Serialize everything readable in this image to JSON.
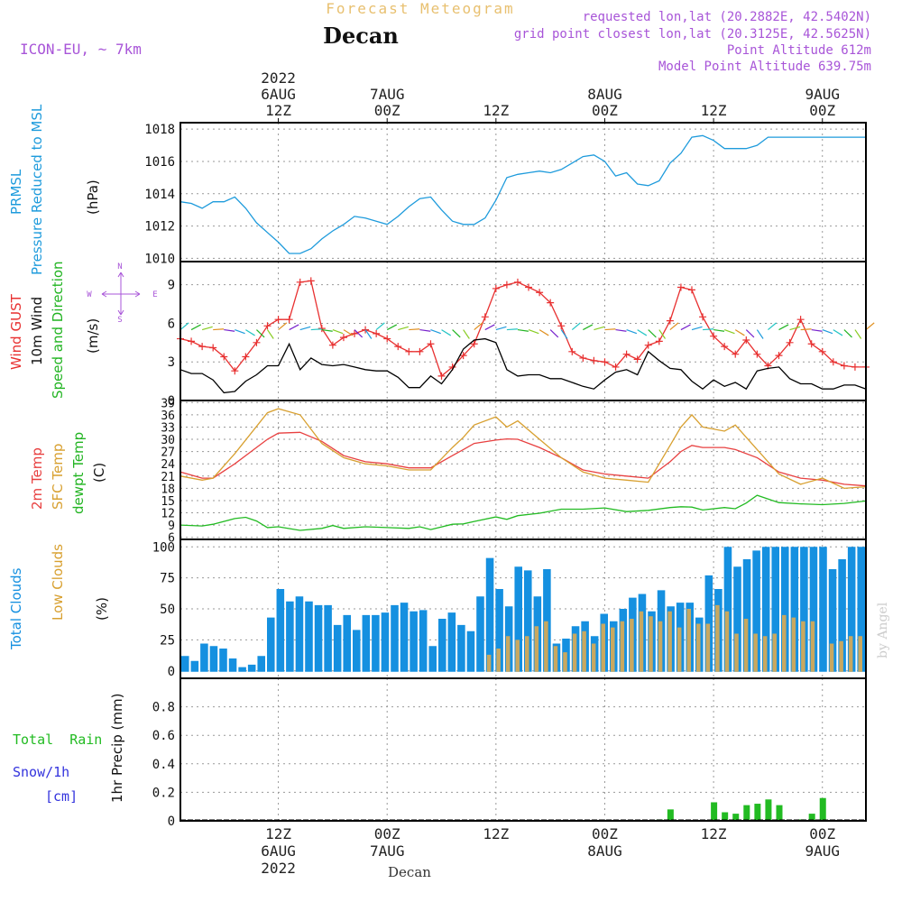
{
  "header": {
    "title": "Forecast Meteogram",
    "location": "Decan",
    "model": "ICON-EU, ~ 7km",
    "requested": "requested lon,lat (20.2882E, 42.5402N)",
    "gridpoint": "grid point closest lon,lat (20.3125E, 42.5625N)",
    "point_altitude": "Point Altitude 612m",
    "model_altitude": "Model Point Altitude 639.75m",
    "watermark": "by Angel",
    "bottom_label": "Decan"
  },
  "time_axis": {
    "start_hour": 0,
    "end_hour": 63,
    "ticks": [
      {
        "hour": 9,
        "lines": [
          "2022",
          "6AUG",
          "12Z"
        ]
      },
      {
        "hour": 19,
        "lines": [
          "7AUG",
          "00Z"
        ]
      },
      {
        "hour": 29,
        "lines": [
          "12Z"
        ]
      },
      {
        "hour": 39,
        "lines": [
          "8AUG",
          "00Z"
        ]
      },
      {
        "hour": 49,
        "lines": [
          "12Z"
        ]
      },
      {
        "hour": 59,
        "lines": [
          "9AUG",
          "00Z"
        ]
      }
    ],
    "bottom_ticks": [
      {
        "hour": 9,
        "lines": [
          "12Z",
          "6AUG",
          "2022"
        ]
      },
      {
        "hour": 19,
        "lines": [
          "00Z",
          "7AUG"
        ]
      },
      {
        "hour": 29,
        "lines": [
          "12Z"
        ]
      },
      {
        "hour": 39,
        "lines": [
          "00Z",
          "8AUG"
        ]
      },
      {
        "hour": 49,
        "lines": [
          "12Z"
        ]
      },
      {
        "hour": 59,
        "lines": [
          "00Z",
          "9AUG"
        ]
      }
    ]
  },
  "colors": {
    "pressure": "#1e9bdc",
    "gust": "#e83030",
    "wind": "#000000",
    "direction": "#22b422",
    "temp2m": "#e84040",
    "sfc": "#d8a030",
    "dew": "#22bb22",
    "total_clouds": "#1590e0",
    "low_clouds": "#c8a860",
    "rain": "#22bb22",
    "snow": "#3333dd",
    "title": "#e8c070",
    "purple": "#a855d8",
    "grid": "#999999"
  },
  "chart_data": [
    {
      "type": "line",
      "title": "PRMSL Pressure Reduced to MSL",
      "ylabels": [
        "PRMSL",
        "Pressure Reduced to MSL"
      ],
      "unit": "(hPa)",
      "ylim": [
        1009.8,
        1018.4
      ],
      "yticks": [
        1010,
        1012,
        1014,
        1016,
        1018
      ],
      "series": [
        {
          "name": "PRMSL",
          "x": [
            0,
            1,
            2,
            3,
            4,
            5,
            6,
            7,
            8,
            9,
            10,
            11,
            12,
            13,
            14,
            15,
            16,
            17,
            18,
            19,
            20,
            21,
            22,
            23,
            24,
            25,
            26,
            27,
            28,
            29,
            30,
            31,
            32,
            33,
            34,
            35,
            36,
            37,
            38,
            39,
            40,
            41,
            42,
            43,
            44,
            45,
            46,
            47,
            48,
            49,
            50,
            51,
            52,
            53,
            54,
            55,
            56,
            57,
            58,
            59,
            60,
            61,
            62,
            63
          ],
          "values": [
            1013.5,
            1013.4,
            1013.1,
            1013.5,
            1013.5,
            1013.8,
            1013.1,
            1012.2,
            1011.6,
            1011.0,
            1010.3,
            1010.3,
            1010.6,
            1011.2,
            1011.7,
            1012.1,
            1012.6,
            1012.5,
            1012.3,
            1012.1,
            1012.6,
            1013.2,
            1013.7,
            1013.8,
            1013.0,
            1012.3,
            1012.1,
            1012.1,
            1012.5,
            1013.6,
            1015.0,
            1015.2,
            1015.3,
            1015.4,
            1015.3,
            1015.5,
            1015.9,
            1016.3,
            1016.4,
            1016.0,
            1015.1,
            1015.3,
            1014.6,
            1014.5,
            1014.8,
            1015.9,
            1016.5,
            1017.5,
            1017.6,
            1017.3,
            1016.8,
            1016.8,
            1016.8,
            1017.0,
            1017.5,
            1017.5,
            1017.5,
            1017.5,
            1017.5,
            1017.5,
            1017.5,
            1017.5,
            1017.5,
            1017.5
          ]
        }
      ]
    },
    {
      "type": "line",
      "title": "Wind GUST / 10m Wind Speed and Direction",
      "ylabels": [
        "Wind GUST",
        "10m Wind",
        "Speed and Direction"
      ],
      "unit": "(m/s)",
      "compass": [
        "N",
        "W",
        "E",
        "S"
      ],
      "ylim": [
        0,
        10.8
      ],
      "yticks": [
        0,
        3,
        6,
        9
      ],
      "series": [
        {
          "name": "Wind GUST",
          "x": [
            0,
            1,
            2,
            3,
            4,
            5,
            6,
            7,
            8,
            9,
            10,
            11,
            12,
            13,
            14,
            15,
            16,
            17,
            18,
            19,
            20,
            21,
            22,
            23,
            24,
            25,
            26,
            27,
            28,
            29,
            30,
            31,
            32,
            33,
            34,
            35,
            36,
            37,
            38,
            39,
            40,
            41,
            42,
            43,
            44,
            45,
            46,
            47,
            48,
            49,
            50,
            51,
            52,
            53,
            54,
            55,
            56,
            57,
            58,
            59,
            60,
            61,
            62,
            63
          ],
          "values": [
            4.8,
            4.6,
            4.2,
            4.1,
            3.4,
            2.3,
            3.4,
            4.5,
            5.8,
            6.3,
            6.3,
            9.2,
            9.3,
            5.6,
            4.3,
            4.9,
            5.2,
            5.5,
            5.2,
            4.8,
            4.2,
            3.8,
            3.8,
            4.4,
            1.9,
            2.6,
            3.5,
            4.4,
            6.5,
            8.7,
            9.0,
            9.2,
            8.8,
            8.4,
            7.6,
            5.8,
            3.8,
            3.3,
            3.1,
            3.0,
            2.6,
            3.6,
            3.2,
            4.3,
            4.6,
            6.2,
            8.8,
            8.6,
            6.5,
            5.0,
            4.2,
            3.6,
            4.7,
            3.6,
            2.7,
            3.5,
            4.5,
            6.3,
            4.4,
            3.8,
            3.0,
            2.7,
            2.6,
            2.6
          ]
        },
        {
          "name": "10m Wind",
          "x": [
            0,
            1,
            2,
            3,
            4,
            5,
            6,
            7,
            8,
            9,
            10,
            11,
            12,
            13,
            14,
            15,
            16,
            17,
            18,
            19,
            20,
            21,
            22,
            23,
            24,
            25,
            26,
            27,
            28,
            29,
            30,
            31,
            32,
            33,
            34,
            35,
            36,
            37,
            38,
            39,
            40,
            41,
            42,
            43,
            44,
            45,
            46,
            47,
            48,
            49,
            50,
            51,
            52,
            53,
            54,
            55,
            56,
            57,
            58,
            59,
            60,
            61,
            62,
            63
          ],
          "values": [
            2.4,
            2.1,
            2.1,
            1.6,
            0.6,
            0.7,
            1.5,
            2.0,
            2.7,
            2.7,
            4.4,
            2.4,
            3.3,
            2.8,
            2.7,
            2.8,
            2.6,
            2.4,
            2.3,
            2.3,
            1.8,
            1.0,
            1.0,
            1.9,
            1.3,
            2.4,
            4.0,
            4.7,
            4.8,
            4.5,
            2.4,
            1.9,
            2.0,
            2.0,
            1.7,
            1.7,
            1.4,
            1.1,
            0.9,
            1.6,
            2.2,
            2.4,
            2.0,
            3.8,
            3.1,
            2.5,
            2.4,
            1.5,
            0.9,
            1.6,
            1.1,
            1.4,
            0.9,
            2.3,
            2.5,
            2.6,
            1.7,
            1.3,
            1.3,
            0.9,
            0.9,
            1.2,
            1.2,
            0.9
          ]
        }
      ]
    },
    {
      "type": "line",
      "title": "2m Temp / SFC Temp / dewpt Temp",
      "ylabels": [
        "2m Temp",
        "SFC Temp",
        "dewpt Temp"
      ],
      "unit": "(C)",
      "ylim": [
        5.5,
        39.5
      ],
      "yticks": [
        6,
        9,
        12,
        15,
        18,
        21,
        24,
        27,
        30,
        33,
        36,
        39
      ],
      "series": [
        {
          "name": "2m Temp",
          "x": [
            0,
            2,
            3,
            5,
            8,
            9,
            11,
            13,
            15,
            17,
            19,
            21,
            23,
            25,
            26,
            27,
            29,
            30,
            31,
            33,
            35,
            37,
            39,
            41,
            43,
            45,
            46,
            47,
            48,
            50,
            51,
            53,
            55,
            57,
            59,
            61,
            63
          ],
          "values": [
            22,
            20.5,
            20.5,
            24,
            30,
            31.5,
            31.7,
            29.5,
            26,
            24.5,
            24,
            23,
            23,
            26,
            27.5,
            29,
            29.8,
            30.1,
            30,
            28,
            25.5,
            22.5,
            21.5,
            21,
            20.5,
            24.5,
            27,
            28.5,
            28,
            28,
            27.5,
            25.5,
            22,
            20.5,
            20,
            19,
            18.6
          ]
        },
        {
          "name": "SFC Temp",
          "x": [
            0,
            2,
            3,
            5,
            8,
            9,
            11,
            13,
            15,
            17,
            19,
            21,
            23,
            25,
            26,
            27,
            29,
            30,
            31,
            33,
            35,
            37,
            39,
            41,
            43,
            45,
            46,
            47,
            48,
            50,
            51,
            53,
            55,
            57,
            59,
            61,
            63
          ],
          "values": [
            21,
            20,
            20.5,
            26.5,
            36.5,
            37.5,
            36,
            29,
            25.5,
            24,
            23.5,
            22.5,
            22.5,
            28,
            30.5,
            33.5,
            35.5,
            33,
            34.5,
            30,
            25.5,
            22,
            20.5,
            20,
            19.5,
            28.5,
            33,
            36,
            33,
            32,
            33.5,
            27.5,
            21.5,
            19,
            20.5,
            18,
            18.4
          ]
        },
        {
          "name": "dewpt Temp",
          "x": [
            0,
            2,
            3,
            5,
            6,
            7,
            8,
            9,
            11,
            13,
            14,
            15,
            17,
            19,
            21,
            22,
            23,
            25,
            26,
            27,
            29,
            30,
            31,
            33,
            35,
            37,
            39,
            41,
            43,
            45,
            46,
            47,
            48,
            50,
            51,
            52,
            53,
            55,
            57,
            59,
            61,
            63
          ],
          "values": [
            9,
            8.8,
            9.2,
            10.6,
            10.9,
            10.0,
            8.4,
            8.6,
            7.7,
            8.2,
            8.9,
            8.2,
            8.6,
            8.4,
            8.2,
            8.6,
            7.9,
            9.2,
            9.3,
            9.9,
            11.0,
            10.4,
            11.3,
            11.9,
            12.9,
            12.9,
            13.2,
            12.3,
            12.6,
            13.3,
            13.5,
            13.4,
            12.7,
            13.3,
            13.0,
            14.4,
            16.3,
            14.5,
            14.2,
            14.0,
            14.3,
            14.9
          ]
        }
      ]
    },
    {
      "type": "bar",
      "title": "Total Clouds / Low Clouds",
      "ylabels": [
        "Total Clouds",
        "Low Clouds"
      ],
      "unit": "(%)",
      "ylim": [
        -6,
        106
      ],
      "yticks": [
        0,
        25,
        50,
        75,
        100
      ],
      "series": [
        {
          "name": "Total Clouds",
          "values": [
            12,
            8,
            22,
            20,
            18,
            10,
            3,
            5,
            12,
            43,
            66,
            56,
            60,
            56,
            53,
            53,
            37,
            45,
            33,
            45,
            45,
            47,
            53,
            55,
            48,
            49,
            20,
            42,
            47,
            37,
            32,
            60,
            91,
            66,
            52,
            84,
            81,
            60,
            82,
            22,
            26,
            36,
            40,
            28,
            46,
            40,
            50,
            59,
            62,
            48,
            65,
            52,
            55,
            55,
            43,
            77,
            66,
            100,
            84,
            90,
            97,
            100,
            100,
            100,
            100,
            100,
            100,
            100,
            82,
            90,
            100,
            100
          ]
        },
        {
          "name": "Low Clouds",
          "values": [
            0,
            0,
            0,
            0,
            0,
            0,
            0,
            0,
            0,
            0,
            0,
            0,
            0,
            0,
            0,
            0,
            0,
            0,
            0,
            0,
            0,
            0,
            0,
            0,
            0,
            0,
            0,
            0,
            0,
            0,
            0,
            0,
            13,
            18,
            28,
            25,
            28,
            36,
            40,
            20,
            15,
            30,
            32,
            22,
            38,
            35,
            40,
            42,
            48,
            44,
            40,
            48,
            35,
            50,
            38,
            38,
            53,
            48,
            30,
            42,
            30,
            28,
            30,
            45,
            43,
            40,
            40,
            0,
            22,
            24,
            28,
            28
          ]
        }
      ]
    },
    {
      "type": "bar",
      "title": "1hr Precip (mm)",
      "ylabels": [
        "Total  Rain",
        "Snow/1h",
        "[cm]"
      ],
      "unit": "1hr Precip (mm)",
      "ylim": [
        0,
        1.0
      ],
      "yticks": [
        0,
        0.2,
        0.4,
        0.6,
        0.8
      ],
      "series": [
        {
          "name": "Total Rain",
          "x": [
            31,
            42,
            44,
            45,
            49,
            50,
            51,
            52,
            53,
            54,
            55,
            56,
            57,
            58,
            59
          ],
          "values": [
            0.005,
            0.005,
            0.01,
            0.08,
            0.13,
            0.06,
            0.05,
            0.11,
            0.12,
            0.15,
            0.11,
            0.005,
            0.01,
            0.05,
            0.16
          ]
        }
      ]
    }
  ]
}
